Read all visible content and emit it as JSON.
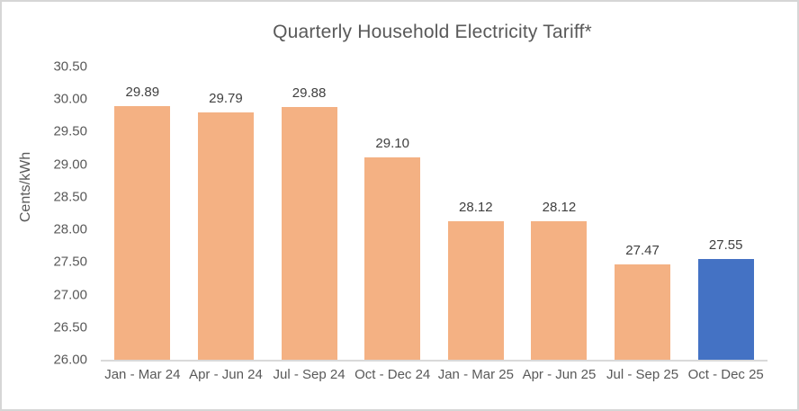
{
  "chart_data": {
    "type": "bar",
    "title": "Quarterly Household Electricity Tariff*",
    "xlabel": "",
    "ylabel": "Cents/kWh",
    "categories": [
      "Jan - Mar 24",
      "Apr - Jun 24",
      "Jul - Sep 24",
      "Oct - Dec 24",
      "Jan - Mar 25",
      "Apr - Jun 25",
      "Jul - Sep 25",
      "Oct - Dec 25"
    ],
    "values": [
      29.89,
      29.79,
      29.88,
      29.1,
      28.12,
      28.12,
      27.47,
      27.55
    ],
    "data_labels": [
      "29.89",
      "29.79",
      "29.88",
      "29.10",
      "28.12",
      "28.12",
      "27.47",
      "27.55"
    ],
    "ylim": [
      26.0,
      30.5
    ],
    "ytick_step": 0.5,
    "yticks": [
      "30.50",
      "30.00",
      "29.50",
      "29.00",
      "28.50",
      "28.00",
      "27.50",
      "27.00",
      "26.50",
      "26.00"
    ],
    "grid": false,
    "legend": "none",
    "bar_colors": [
      "#F4B183",
      "#F4B183",
      "#F4B183",
      "#F4B183",
      "#F4B183",
      "#F4B183",
      "#F4B183",
      "#4472C4"
    ],
    "default_bar_color": "#F4B183",
    "highlight_color": "#4472C4",
    "colors": {
      "title": "#595959",
      "axis_text": "#595959",
      "data_label_text": "#404040",
      "axis_line": "#D9D9D9",
      "frame_border": "#D6D6D6",
      "background": "#FFFFFF"
    }
  }
}
